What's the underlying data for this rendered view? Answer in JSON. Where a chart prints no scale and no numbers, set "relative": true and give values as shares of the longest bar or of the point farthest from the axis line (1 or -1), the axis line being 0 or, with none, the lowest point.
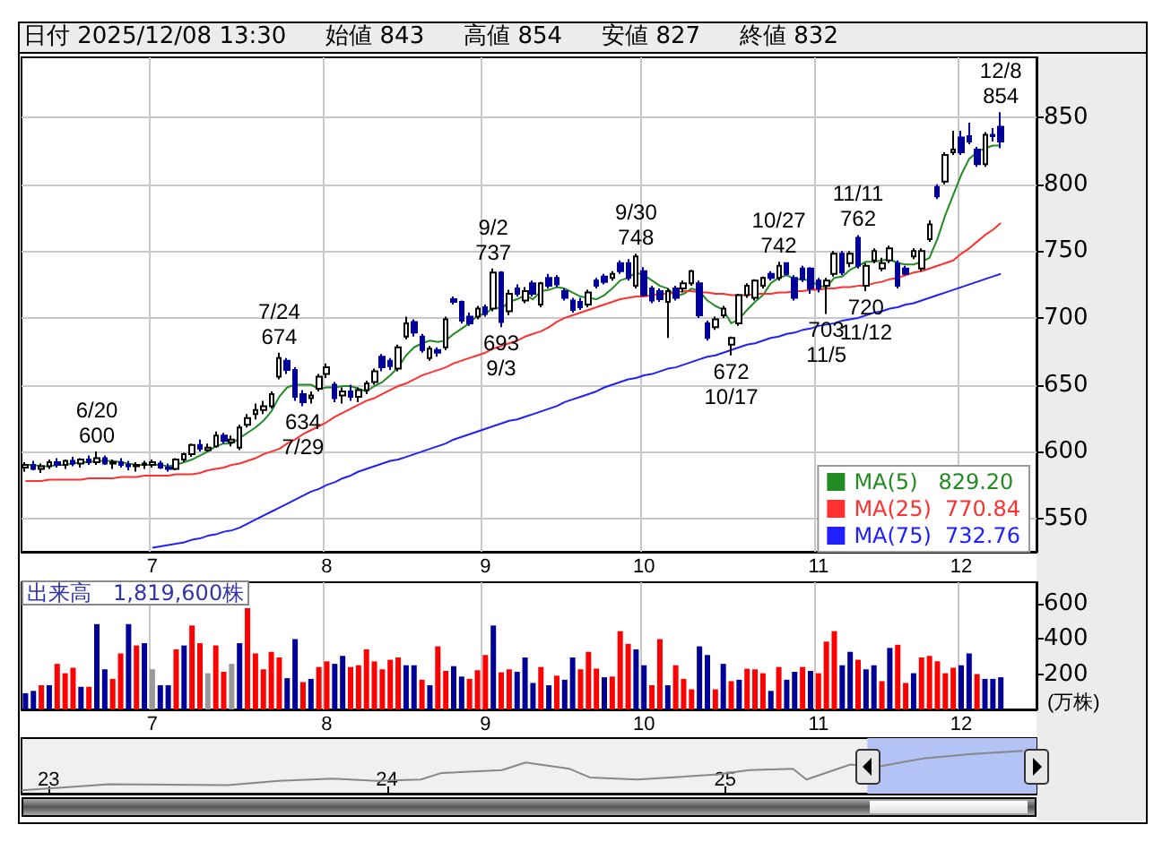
{
  "chart_data": [
    {
      "type": "candlestick",
      "title": "日付 2025/12/08 13:30",
      "annotations": [
        "始値 843",
        "高値 854",
        "安値 827",
        "終値 832",
        {
          "text": "6/20\n600",
          "y": 600
        },
        {
          "text": "7/24\n674",
          "y": 674
        },
        {
          "text": "634\n7/29",
          "y": 634
        },
        {
          "text": "9/2\n737",
          "y": 737
        },
        {
          "text": "693\n9/3",
          "y": 693
        },
        {
          "text": "9/30\n748",
          "y": 748
        },
        {
          "text": "672\n10/17",
          "y": 672
        },
        {
          "text": "10/27\n742",
          "y": 742
        },
        {
          "text": "703\n11/5",
          "y": 703
        },
        {
          "text": "11/11\n762",
          "y": 762
        },
        {
          "text": "720\n11/12",
          "y": 720
        },
        {
          "text": "12/8\n854",
          "y": 854
        }
      ],
      "categories": [
        null,
        null,
        null,
        null,
        null,
        null,
        null,
        null,
        null,
        null,
        null,
        null,
        null,
        null,
        null,
        null,
        "7",
        null,
        null,
        null,
        null,
        null,
        null,
        null,
        null,
        null,
        null,
        null,
        null,
        null,
        null,
        null,
        null,
        null,
        null,
        null,
        null,
        null,
        "8",
        null,
        null,
        null,
        null,
        null,
        null,
        null,
        null,
        null,
        null,
        null,
        null,
        null,
        null,
        null,
        null,
        null,
        null,
        null,
        "9",
        null,
        null,
        null,
        null,
        null,
        null,
        null,
        null,
        null,
        null,
        null,
        null,
        null,
        null,
        null,
        null,
        null,
        null,
        null,
        "10",
        null,
        null,
        null,
        null,
        null,
        null,
        null,
        null,
        null,
        null,
        null,
        null,
        null,
        null,
        null,
        null,
        null,
        null,
        null,
        null,
        null,
        "11",
        null,
        null,
        null,
        null,
        null,
        null,
        null,
        null,
        null,
        null,
        null,
        null,
        null,
        null,
        null,
        null,
        null,
        "12",
        null,
        null,
        null,
        null,
        null
      ],
      "ohlc": [
        [
          588,
          592,
          585,
          590
        ],
        [
          590,
          593,
          586,
          587
        ],
        [
          587,
          591,
          584,
          589
        ],
        [
          589,
          594,
          587,
          592
        ],
        [
          592,
          595,
          588,
          590
        ],
        [
          590,
          594,
          587,
          593
        ],
        [
          593,
          596,
          589,
          591
        ],
        [
          591,
          595,
          588,
          594
        ],
        [
          594,
          597,
          590,
          592
        ],
        [
          592,
          600,
          590,
          595
        ],
        [
          595,
          597,
          590,
          591
        ],
        [
          591,
          594,
          587,
          592
        ],
        [
          592,
          595,
          588,
          590
        ],
        [
          590,
          593,
          586,
          589
        ],
        [
          589,
          592,
          585,
          590
        ],
        [
          590,
          593,
          587,
          591
        ],
        [
          590,
          594,
          588,
          592
        ],
        [
          591,
          593,
          587,
          588
        ],
        [
          588,
          591,
          585,
          587
        ],
        [
          587,
          595,
          586,
          594
        ],
        [
          594,
          599,
          592,
          598
        ],
        [
          598,
          606,
          596,
          605
        ],
        [
          605,
          609,
          600,
          602
        ],
        [
          601,
          606,
          600,
          603
        ],
        [
          604,
          615,
          603,
          612
        ],
        [
          612,
          614,
          606,
          608
        ],
        [
          607,
          612,
          604,
          609
        ],
        [
          603,
          620,
          601,
          618
        ],
        [
          620,
          628,
          618,
          625
        ],
        [
          628,
          636,
          624,
          631
        ],
        [
          631,
          638,
          628,
          634
        ],
        [
          634,
          645,
          632,
          643
        ],
        [
          656,
          674,
          654,
          670
        ],
        [
          668,
          670,
          658,
          661
        ],
        [
          661,
          663,
          638,
          641
        ],
        [
          643,
          646,
          634,
          637
        ],
        [
          640,
          645,
          636,
          642
        ],
        [
          647,
          658,
          645,
          656
        ],
        [
          658,
          666,
          655,
          663
        ],
        [
          650,
          652,
          637,
          640
        ],
        [
          642,
          648,
          636,
          645
        ],
        [
          645,
          650,
          638,
          641
        ],
        [
          641,
          648,
          637,
          646
        ],
        [
          646,
          653,
          643,
          651
        ],
        [
          652,
          662,
          650,
          660
        ],
        [
          671,
          673,
          660,
          663
        ],
        [
          668,
          670,
          661,
          664
        ],
        [
          662,
          680,
          660,
          678
        ],
        [
          686,
          701,
          684,
          696
        ],
        [
          697,
          699,
          686,
          689
        ],
        [
          686,
          688,
          674,
          676
        ],
        [
          670,
          679,
          668,
          677
        ],
        [
          676,
          678,
          671,
          674
        ],
        [
          678,
          701,
          676,
          699
        ],
        [
          714,
          716,
          710,
          712
        ],
        [
          712,
          713,
          696,
          698
        ],
        [
          701,
          704,
          694,
          696
        ],
        [
          701,
          709,
          699,
          707
        ],
        [
          708,
          710,
          701,
          703
        ],
        [
          707,
          737,
          705,
          734
        ],
        [
          734,
          735,
          693,
          697
        ],
        [
          705,
          721,
          702,
          718
        ],
        [
          722,
          725,
          716,
          718
        ],
        [
          713,
          723,
          711,
          720
        ],
        [
          726,
          728,
          716,
          718
        ],
        [
          710,
          727,
          708,
          726
        ],
        [
          730,
          733,
          722,
          724
        ],
        [
          730,
          732,
          723,
          725
        ],
        [
          720,
          722,
          713,
          715
        ],
        [
          713,
          715,
          704,
          706
        ],
        [
          712,
          715,
          706,
          708
        ],
        [
          710,
          721,
          708,
          719
        ],
        [
          728,
          730,
          722,
          724
        ],
        [
          731,
          733,
          725,
          727
        ],
        [
          730,
          735,
          728,
          733
        ],
        [
          741,
          743,
          733,
          735
        ],
        [
          741,
          744,
          728,
          730
        ],
        [
          724,
          748,
          722,
          746
        ],
        [
          735,
          738,
          716,
          717
        ],
        [
          722,
          724,
          711,
          713
        ],
        [
          720,
          722,
          712,
          714
        ],
        [
          712,
          722,
          685,
          720
        ],
        [
          722,
          724,
          713,
          715
        ],
        [
          722,
          728,
          719,
          726
        ],
        [
          726,
          736,
          724,
          735
        ],
        [
          726,
          728,
          700,
          702
        ],
        [
          696,
          698,
          683,
          685
        ],
        [
          693,
          701,
          691,
          699
        ],
        [
          702,
          709,
          700,
          707
        ],
        [
          680,
          686,
          672,
          685
        ],
        [
          696,
          718,
          694,
          717
        ],
        [
          717,
          726,
          715,
          724
        ],
        [
          715,
          729,
          713,
          728
        ],
        [
          724,
          731,
          722,
          730
        ],
        [
          733,
          735,
          728,
          730
        ],
        [
          730,
          742,
          728,
          739
        ],
        [
          741,
          741,
          732,
          733
        ],
        [
          730,
          732,
          713,
          715
        ],
        [
          737,
          739,
          727,
          729
        ],
        [
          737,
          738,
          718,
          722
        ],
        [
          728,
          730,
          719,
          722
        ],
        [
          724,
          730,
          703,
          728
        ],
        [
          733,
          750,
          731,
          748
        ],
        [
          748,
          750,
          732,
          734
        ],
        [
          741,
          750,
          738,
          748
        ],
        [
          760,
          762,
          737,
          739
        ],
        [
          724,
          741,
          720,
          739
        ],
        [
          743,
          752,
          741,
          750
        ],
        [
          737,
          745,
          735,
          741
        ],
        [
          743,
          754,
          741,
          752
        ],
        [
          741,
          743,
          722,
          724
        ],
        [
          737,
          739,
          732,
          733
        ],
        [
          746,
          752,
          744,
          750
        ],
        [
          737,
          752,
          735,
          750
        ],
        [
          759,
          773,
          757,
          770
        ],
        [
          798,
          800,
          789,
          791
        ],
        [
          802,
          824,
          800,
          822
        ],
        [
          824,
          840,
          822,
          826
        ],
        [
          835,
          840,
          822,
          824
        ],
        [
          836,
          846,
          830,
          832
        ],
        [
          826,
          828,
          813,
          815
        ],
        [
          815,
          839,
          813,
          837
        ],
        [
          837,
          842,
          832,
          836
        ],
        [
          843,
          854,
          827,
          832
        ]
      ],
      "series": [
        {
          "name": "MA(5)   829.20",
          "type": "line",
          "color": "#228b22",
          "values": [
            590,
            590,
            589,
            589,
            590,
            590,
            591,
            592,
            592,
            593,
            593,
            593,
            592,
            591,
            590,
            590,
            590,
            590,
            589,
            590,
            592,
            594,
            597,
            600,
            604,
            606,
            606,
            610,
            614,
            618,
            623,
            630,
            641,
            648,
            650,
            650,
            650,
            647,
            648,
            648,
            649,
            649,
            647,
            645,
            649,
            652,
            657,
            663,
            672,
            678,
            681,
            683,
            682,
            683,
            688,
            692,
            696,
            702,
            703,
            708,
            707,
            712,
            714,
            717,
            714,
            720,
            721,
            723,
            722,
            719,
            716,
            715,
            714,
            717,
            722,
            728,
            730,
            734,
            732,
            728,
            724,
            722,
            716,
            718,
            722,
            720,
            713,
            709,
            706,
            696,
            699,
            706,
            712,
            717,
            726,
            730,
            732,
            729,
            729,
            728,
            724,
            723,
            730,
            731,
            736,
            739,
            742,
            742,
            743,
            744,
            741,
            740,
            740,
            742,
            745,
            759,
            777,
            792,
            807,
            819,
            824,
            827,
            829,
            829
          ]
        },
        {
          "name": "MA(25)  770.84",
          "type": "line",
          "color": "#ff3030",
          "values": [
            578,
            578,
            578,
            579,
            579,
            579,
            579,
            579,
            580,
            580,
            580,
            580,
            581,
            581,
            581,
            582,
            582,
            582,
            582,
            583,
            583,
            583,
            584,
            586,
            587,
            588,
            590,
            591,
            593,
            595,
            598,
            600,
            602,
            606,
            609,
            613,
            616,
            619,
            622,
            626,
            629,
            632,
            635,
            638,
            640,
            643,
            646,
            649,
            651,
            654,
            657,
            659,
            661,
            663,
            666,
            668,
            670,
            672,
            674,
            677,
            679,
            681,
            683,
            686,
            688,
            690,
            693,
            697,
            700,
            702,
            704,
            706,
            708,
            710,
            712,
            714,
            715,
            716,
            716,
            717,
            718,
            718,
            719,
            720,
            720,
            719,
            719,
            718,
            718,
            717,
            717,
            717,
            718,
            718,
            718,
            719,
            719,
            720,
            720,
            721,
            721,
            722,
            722,
            723,
            723,
            724,
            724,
            726,
            727,
            729,
            730,
            732,
            734,
            735,
            737,
            739,
            741,
            743,
            748,
            752,
            757,
            762,
            766,
            771
          ]
        },
        {
          "name": "MA(75)  732.76",
          "type": "line",
          "color": "#2020ff",
          "values": [
            null,
            null,
            null,
            null,
            null,
            null,
            null,
            null,
            null,
            null,
            null,
            null,
            null,
            null,
            null,
            null,
            528,
            529,
            530,
            531,
            532,
            534,
            535,
            537,
            538,
            540,
            541,
            543,
            546,
            549,
            552,
            555,
            558,
            561,
            564,
            567,
            570,
            572,
            575,
            577,
            580,
            582,
            585,
            587,
            589,
            591,
            593,
            594,
            596,
            598,
            600,
            602,
            604,
            606,
            609,
            611,
            613,
            615,
            617,
            619,
            621,
            623,
            624,
            626,
            628,
            630,
            632,
            634,
            637,
            639,
            641,
            643,
            645,
            648,
            650,
            652,
            654,
            655,
            657,
            658,
            660,
            662,
            663,
            665,
            667,
            669,
            671,
            672,
            674,
            676,
            678,
            680,
            681,
            683,
            685,
            686,
            688,
            689,
            691,
            692,
            694,
            695,
            696,
            698,
            699,
            700,
            702,
            704,
            705,
            707,
            708,
            710,
            711,
            713,
            715,
            717,
            719,
            721,
            723,
            725,
            727,
            729,
            731,
            733
          ]
        }
      ],
      "ylim": [
        525,
        895
      ],
      "yticks": [
        550,
        600,
        650,
        700,
        750,
        800,
        850
      ],
      "grid": true,
      "legend": "bottom right",
      "marker": "none"
    },
    {
      "type": "bar",
      "title": "出来高　1,819,600株",
      "ylabel": "(万株)",
      "categories": [
        null,
        null,
        null,
        null,
        null,
        null,
        null,
        null,
        null,
        null,
        null,
        null,
        null,
        null,
        null,
        null,
        "7",
        null,
        null,
        null,
        null,
        null,
        null,
        null,
        null,
        null,
        null,
        null,
        null,
        null,
        null,
        null,
        null,
        null,
        null,
        null,
        null,
        null,
        "8",
        null,
        null,
        null,
        null,
        null,
        null,
        null,
        null,
        null,
        null,
        null,
        null,
        null,
        null,
        null,
        null,
        null,
        null,
        null,
        "9",
        null,
        null,
        null,
        null,
        null,
        null,
        null,
        null,
        null,
        null,
        null,
        null,
        null,
        null,
        null,
        null,
        null,
        null,
        null,
        "10",
        null,
        null,
        null,
        null,
        null,
        null,
        null,
        null,
        null,
        null,
        null,
        null,
        null,
        null,
        null,
        null,
        null,
        null,
        null,
        null,
        null,
        "11",
        null,
        null,
        null,
        null,
        null,
        null,
        null,
        null,
        null,
        null,
        null,
        null,
        null,
        null,
        null,
        null,
        null,
        "12",
        null,
        null,
        null,
        null,
        null
      ],
      "values": [
        92,
        105,
        137,
        137,
        258,
        205,
        236,
        128,
        128,
        483,
        227,
        173,
        317,
        483,
        362,
        375,
        227,
        137,
        137,
        340,
        362,
        475,
        375,
        205,
        362,
        213,
        258,
        375,
        573,
        317,
        227,
        326,
        294,
        177,
        398,
        155,
        173,
        240,
        272,
        258,
        303,
        240,
        250,
        340,
        272,
        227,
        281,
        294,
        250,
        250,
        168,
        137,
        357,
        218,
        245,
        186,
        173,
        222,
        308,
        475,
        210,
        227,
        213,
        294,
        150,
        240,
        137,
        191,
        168,
        294,
        227,
        326,
        231,
        182,
        186,
        443,
        371,
        340,
        250,
        137,
        398,
        137,
        250,
        173,
        114,
        357,
        308,
        114,
        258,
        160,
        168,
        230,
        227,
        205,
        105,
        240,
        168,
        213,
        240,
        218,
        205,
        384,
        443,
        250,
        326,
        281,
        227,
        250,
        160,
        348,
        366,
        150,
        205,
        294,
        303,
        272,
        205,
        236,
        250,
        317,
        200,
        173,
        173,
        182
      ],
      "colors": [
        "#000099",
        "#000099",
        "#ff0000",
        "#000099",
        "#ff0000",
        "#ff0000",
        "#ff0000",
        "#000099",
        "#ff0000",
        "#000099",
        "#000099",
        "#ff0000",
        "#ff0000",
        "#000099",
        "#ff0000",
        "#000099",
        "#999999",
        "#000099",
        "#000099",
        "#ff0000",
        "#000099",
        "#ff0000",
        "#ff0000",
        "#999999",
        "#ff0000",
        "#ff0000",
        "#999999",
        "#000099",
        "#ff0000",
        "#ff0000",
        "#ff0000",
        "#ff0000",
        "#ff0000",
        "#000099",
        "#000099",
        "#ff0000",
        "#000099",
        "#ff0000",
        "#ff0000",
        "#000099",
        "#000099",
        "#ff0000",
        "#ff0000",
        "#ff0000",
        "#ff0000",
        "#ff0000",
        "#ff0000",
        "#ff0000",
        "#000099",
        "#000099",
        "#ff0000",
        "#000099",
        "#ff0000",
        "#ff0000",
        "#000099",
        "#000099",
        "#ff0000",
        "#ff0000",
        "#ff0000",
        "#000099",
        "#ff0000",
        "#ff0000",
        "#000099",
        "#000099",
        "#000099",
        "#ff0000",
        "#000099",
        "#ff0000",
        "#000099",
        "#000099",
        "#ff0000",
        "#ff0000",
        "#ff0000",
        "#000099",
        "#ff0000",
        "#ff0000",
        "#ff0000",
        "#000099",
        "#000099",
        "#ff0000",
        "#ff0000",
        "#000099",
        "#ff0000",
        "#ff0000",
        "#ff0000",
        "#000099",
        "#000099",
        "#ff0000",
        "#000099",
        "#ff0000",
        "#000099",
        "#ff0000",
        "#ff0000",
        "#ff0000",
        "#000099",
        "#ff0000",
        "#000099",
        "#000099",
        "#ff0000",
        "#000099",
        "#ff0000",
        "#ff0000",
        "#ff0000",
        "#000099",
        "#000099",
        "#ff0000",
        "#000099",
        "#000099",
        "#ff0000",
        "#000099",
        "#ff0000",
        "#ff0000",
        "#000099",
        "#ff0000",
        "#ff0000",
        "#ff0000",
        "#ff0000",
        "#ff0000",
        "#000099",
        "#000099",
        "#ff0000",
        "#000099",
        "#000099",
        "#000099"
      ],
      "ylim": [
        0,
        720
      ],
      "yticks": [
        200,
        400,
        600
      ],
      "grid": "x"
    },
    {
      "type": "line",
      "relative": true,
      "color": "#888888",
      "x": [
        2022.92,
        2023.0,
        2023.18,
        2023.53,
        2023.68,
        2023.84,
        2023.97,
        2024.1,
        2024.16,
        2024.34,
        2024.41,
        2024.54,
        2024.6,
        2024.74,
        2024.98,
        2025.07,
        2025.2,
        2025.24,
        2025.37,
        2025.45,
        2025.59,
        2025.73,
        2025.88
      ],
      "values": [
        0.08,
        0.12,
        0.22,
        0.2,
        0.3,
        0.35,
        0.3,
        0.33,
        0.48,
        0.55,
        0.73,
        0.58,
        0.38,
        0.33,
        0.45,
        0.55,
        0.58,
        0.33,
        0.68,
        0.63,
        0.83,
        0.93,
        1
      ],
      "xlim": [
        2022.92,
        2025.92
      ],
      "xticks": [
        {
          "value": 2023,
          "label": "23"
        },
        {
          "value": 2024,
          "label": "24"
        },
        {
          "value": 2025,
          "label": "25"
        }
      ],
      "bands": [
        {
          "axis": "x",
          "from": 2025.42,
          "to": 2025.92,
          "color": "#b4c3f5"
        }
      ]
    }
  ]
}
